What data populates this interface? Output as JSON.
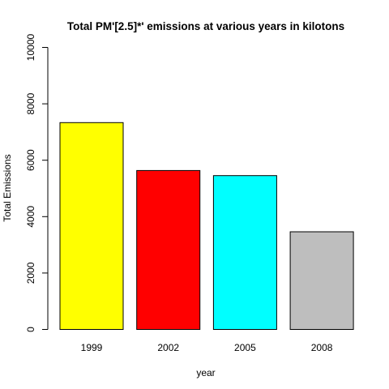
{
  "chart_data": {
    "type": "bar",
    "title": "Total PM'[2.5]*' emissions at various years in kilotons",
    "xlabel": "year",
    "ylabel": "Total Emissions",
    "categories": [
      "1999",
      "2002",
      "2005",
      "2008"
    ],
    "values": [
      7332,
      5635,
      5454,
      3464
    ],
    "colors": [
      "#ffff00",
      "#ff0000",
      "#00ffff",
      "#bebebe"
    ],
    "ylim": [
      0,
      10000
    ],
    "yticks": [
      0,
      2000,
      4000,
      6000,
      8000,
      10000
    ],
    "grid": false,
    "legend": "none"
  }
}
